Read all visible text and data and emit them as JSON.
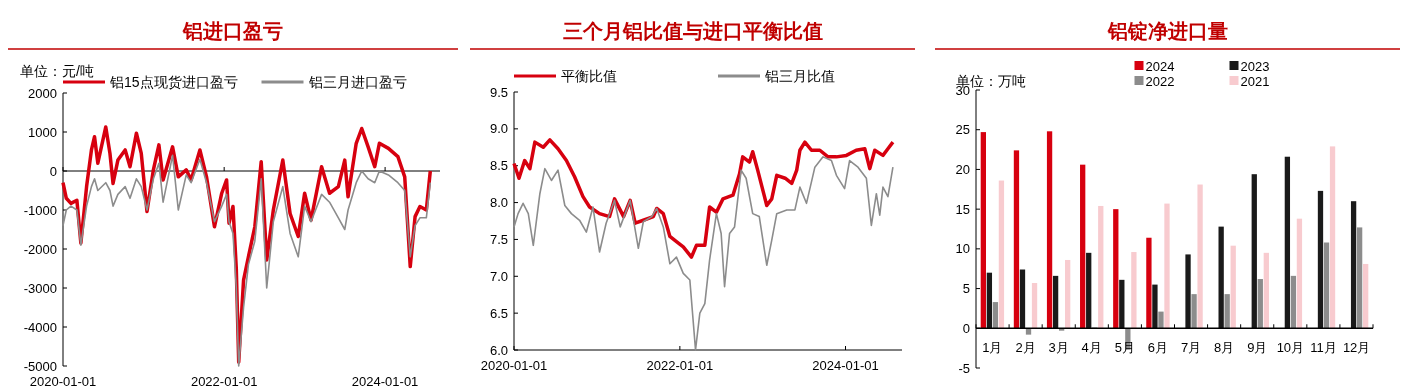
{
  "chart_data": [
    {
      "type": "line",
      "title": "铝进口盈亏",
      "annotations": [
        "单位：元/吨"
      ],
      "legend": "top",
      "line_style": "solid",
      "marker": "none",
      "xlim": [
        "2020-01-01",
        "2024-09-06"
      ],
      "xticks": [
        "2020-01-01",
        "2022-01-01",
        "2024-01-01"
      ],
      "ylim": [
        -5000,
        2000
      ],
      "yticks": [
        -5000,
        -4000,
        -3000,
        -2000,
        -1000,
        0,
        1000,
        2000
      ],
      "series": [
        {
          "name": "铝15点现货进口盈亏",
          "color": "#d7000f",
          "x": [
            "2020-01-01",
            "2020-01-16",
            "2020-02-06",
            "2020-03-04",
            "2020-03-22",
            "2020-04-17",
            "2020-05-09",
            "2020-05-23",
            "2020-06-07",
            "2020-07-13",
            "2020-08-01",
            "2020-08-15",
            "2020-09-06",
            "2020-10-09",
            "2020-10-31",
            "2020-11-29",
            "2020-12-21",
            "2021-01-16",
            "2021-02-14",
            "2021-03-11",
            "2021-03-30",
            "2021-05-12",
            "2021-06-07",
            "2021-07-13",
            "2021-08-04",
            "2021-09-13",
            "2021-10-13",
            "2021-11-18",
            "2021-12-21",
            "2022-01-12",
            "2022-01-23",
            "2022-02-10",
            "2022-02-25",
            "2022-03-08",
            "2022-03-30",
            "2022-04-21",
            "2022-05-20",
            "2022-06-18",
            "2022-07-13",
            "2022-08-12",
            "2022-09-24",
            "2022-10-27",
            "2022-12-03",
            "2023-01-01",
            "2023-01-30",
            "2023-03-19",
            "2023-04-24",
            "2023-06-03",
            "2023-07-02",
            "2023-07-17",
            "2023-08-23",
            "2023-09-17",
            "2023-10-16",
            "2023-11-15",
            "2023-12-06",
            "2024-01-16",
            "2024-02-28",
            "2024-03-30",
            "2024-04-24",
            "2024-05-16",
            "2024-06-07",
            "2024-07-06",
            "2024-07-24"
          ],
          "values": [
            -300,
            -700,
            -830,
            -750,
            -1850,
            -400,
            540,
            880,
            200,
            1130,
            450,
            -320,
            280,
            540,
            110,
            970,
            450,
            -1040,
            30,
            670,
            -230,
            620,
            -150,
            30,
            -230,
            540,
            -150,
            -1430,
            -570,
            -230,
            -1340,
            -910,
            -2500,
            -4900,
            -2800,
            -2200,
            -1430,
            240,
            -2280,
            -1000,
            280,
            -1090,
            -1680,
            -570,
            -1260,
            110,
            -570,
            -400,
            280,
            -660,
            710,
            1090,
            620,
            110,
            710,
            580,
            370,
            -150,
            -2450,
            -1170,
            -910,
            -1000,
            0
          ]
        },
        {
          "name": "铝三月进口盈亏",
          "color": "#8c8c8c",
          "x": [
            "2020-01-01",
            "2020-01-16",
            "2020-02-06",
            "2020-03-04",
            "2020-03-22",
            "2020-04-17",
            "2020-05-09",
            "2020-05-23",
            "2020-06-07",
            "2020-07-13",
            "2020-08-01",
            "2020-08-15",
            "2020-09-06",
            "2020-10-09",
            "2020-10-31",
            "2020-11-29",
            "2020-12-21",
            "2021-01-16",
            "2021-02-14",
            "2021-03-11",
            "2021-03-30",
            "2021-05-12",
            "2021-06-07",
            "2021-07-13",
            "2021-08-04",
            "2021-09-13",
            "2021-10-13",
            "2021-11-18",
            "2021-12-21",
            "2022-01-12",
            "2022-01-23",
            "2022-02-10",
            "2022-02-25",
            "2022-03-08",
            "2022-03-30",
            "2022-04-21",
            "2022-05-20",
            "2022-06-18",
            "2022-07-13",
            "2022-08-12",
            "2022-09-24",
            "2022-10-27",
            "2022-12-03",
            "2023-01-01",
            "2023-01-30",
            "2023-03-19",
            "2023-04-24",
            "2023-06-03",
            "2023-07-02",
            "2023-07-17",
            "2023-08-23",
            "2023-09-17",
            "2023-10-16",
            "2023-11-15",
            "2023-12-06",
            "2024-01-16",
            "2024-02-28",
            "2024-03-30",
            "2024-04-24",
            "2024-05-16",
            "2024-06-07",
            "2024-07-06",
            "2024-07-24"
          ],
          "values": [
            -1400,
            -1000,
            -900,
            -1000,
            -1900,
            -900,
            -400,
            -200,
            -500,
            -300,
            -500,
            -900,
            -600,
            -400,
            -700,
            -200,
            -400,
            -1000,
            -200,
            200,
            -800,
            400,
            -1000,
            -100,
            -300,
            300,
            -300,
            -1300,
            -900,
            -600,
            -1300,
            -1600,
            -3000,
            -5000,
            -3500,
            -2400,
            -1800,
            -200,
            -3000,
            -1300,
            -400,
            -1600,
            -2200,
            -900,
            -1300,
            -600,
            -800,
            -1200,
            -1500,
            -1000,
            -300,
            0,
            -200,
            -300,
            0,
            -100,
            -300,
            -500,
            -2200,
            -1400,
            -1200,
            -1200,
            -300
          ]
        }
      ]
    },
    {
      "type": "line",
      "title": "三个月铝比值与进口平衡比值",
      "legend": "top",
      "line_style": "solid",
      "marker": "none",
      "xlim": [
        "2020-01-01",
        "2024-09-06"
      ],
      "xticks": [
        "2020-01-01",
        "2022-01-01",
        "2024-01-01"
      ],
      "ylim": [
        6,
        9.5
      ],
      "yticks": [
        {
          "value": 6,
          "label": "6.0"
        },
        {
          "value": 6.5,
          "label": "6.5"
        },
        {
          "value": 7,
          "label": "7.0"
        },
        {
          "value": 7.5,
          "label": "7.5"
        },
        {
          "value": 8,
          "label": "8.0"
        },
        {
          "value": 8.5,
          "label": "8.5"
        },
        {
          "value": 9,
          "label": "9.0"
        },
        {
          "value": 9.5,
          "label": "9.5"
        }
      ],
      "series": [
        {
          "name": "平衡比值",
          "color": "#d7000f",
          "x": [
            "2020-01-01",
            "2020-01-23",
            "2020-02-17",
            "2020-03-11",
            "2020-04-02",
            "2020-05-09",
            "2020-06-07",
            "2020-07-13",
            "2020-08-19",
            "2020-09-24",
            "2020-10-31",
            "2020-11-29",
            "2021-01-12",
            "2021-02-25",
            "2021-03-19",
            "2021-04-28",
            "2021-05-27",
            "2021-06-18",
            "2021-07-24",
            "2021-09-06",
            "2021-09-21",
            "2021-10-20",
            "2021-11-18",
            "2021-12-17",
            "2022-01-16",
            "2022-02-21",
            "2022-03-15",
            "2022-04-21",
            "2022-05-12",
            "2022-06-11",
            "2022-07-10",
            "2022-08-23",
            "2022-09-21",
            "2022-10-05",
            "2022-11-04",
            "2022-11-18",
            "2022-12-10",
            "2023-01-19",
            "2023-02-10",
            "2023-03-04",
            "2023-04-10",
            "2023-05-09",
            "2023-05-31",
            "2023-06-14",
            "2023-07-06",
            "2023-08-04",
            "2023-09-10",
            "2023-10-16",
            "2023-11-22",
            "2024-01-05",
            "2024-02-17",
            "2024-03-26",
            "2024-04-17",
            "2024-05-09",
            "2024-06-14",
            "2024-07-06",
            "2024-07-28"
          ],
          "values": [
            8.53,
            8.33,
            8.57,
            8.46,
            8.82,
            8.75,
            8.85,
            8.73,
            8.57,
            8.35,
            8.08,
            7.94,
            7.85,
            7.81,
            8.05,
            7.81,
            8.03,
            7.72,
            7.76,
            7.81,
            7.92,
            7.85,
            7.54,
            7.47,
            7.4,
            7.26,
            7.42,
            7.42,
            7.94,
            7.87,
            8.05,
            8.1,
            8.39,
            8.62,
            8.55,
            8.69,
            8.44,
            7.96,
            8.05,
            8.37,
            8.33,
            8.26,
            8.44,
            8.71,
            8.82,
            8.71,
            8.71,
            8.62,
            8.62,
            8.64,
            8.71,
            8.73,
            8.46,
            8.71,
            8.64,
            8.73,
            8.82
          ]
        },
        {
          "name": "铝三月比值",
          "color": "#8c8c8c",
          "x": [
            "2020-01-01",
            "2020-01-19",
            "2020-02-10",
            "2020-03-04",
            "2020-03-26",
            "2020-04-24",
            "2020-05-16",
            "2020-06-14",
            "2020-07-13",
            "2020-08-12",
            "2020-09-10",
            "2020-10-16",
            "2020-11-15",
            "2020-12-14",
            "2021-01-12",
            "2021-02-10",
            "2021-03-19",
            "2021-04-13",
            "2021-05-27",
            "2021-07-02",
            "2021-07-24",
            "2021-08-30",
            "2021-09-21",
            "2021-10-20",
            "2021-11-18",
            "2021-12-17",
            "2022-01-16",
            "2022-02-14",
            "2022-03-11",
            "2022-03-30",
            "2022-04-21",
            "2022-05-12",
            "2022-06-11",
            "2022-07-02",
            "2022-07-17",
            "2022-08-08",
            "2022-08-30",
            "2022-09-28",
            "2022-10-20",
            "2022-11-18",
            "2022-12-17",
            "2023-01-19",
            "2023-02-10",
            "2023-03-04",
            "2023-04-17",
            "2023-05-23",
            "2023-06-14",
            "2023-07-13",
            "2023-08-19",
            "2023-09-24",
            "2023-10-31",
            "2023-11-22",
            "2023-12-28",
            "2024-01-19",
            "2024-02-25",
            "2024-04-02",
            "2024-04-24",
            "2024-05-16",
            "2024-05-31",
            "2024-06-14",
            "2024-07-06",
            "2024-07-28"
          ],
          "values": [
            7.67,
            7.85,
            7.99,
            7.85,
            7.42,
            8.12,
            8.46,
            8.3,
            8.44,
            7.96,
            7.85,
            7.76,
            7.6,
            7.94,
            7.33,
            7.72,
            8.03,
            7.67,
            8.03,
            7.38,
            7.74,
            7.81,
            7.92,
            7.67,
            7.17,
            7.26,
            7.04,
            6.95,
            6.0,
            6.5,
            6.63,
            7.22,
            7.85,
            7.58,
            6.86,
            7.58,
            7.67,
            8.44,
            8.33,
            7.85,
            7.81,
            7.15,
            7.49,
            7.85,
            7.9,
            7.9,
            8.21,
            7.99,
            8.48,
            8.62,
            8.57,
            8.37,
            8.19,
            8.57,
            8.48,
            8.33,
            7.69,
            8.12,
            7.83,
            8.21,
            8.08,
            8.48
          ]
        }
      ]
    },
    {
      "type": "bar",
      "title": "铝锭净进口量",
      "annotations": [
        "单位：万吨"
      ],
      "legend": "top",
      "categories": [
        "1月",
        "2月",
        "3月",
        "4月",
        "5月",
        "6月",
        "7月",
        "8月",
        "9月",
        "10月",
        "11月",
        "12月"
      ],
      "ylim": [
        -5,
        30
      ],
      "yticks": [
        -5,
        0,
        5,
        10,
        15,
        20,
        25,
        30
      ],
      "series": [
        {
          "name": "2024",
          "color": "#d7000f",
          "values": [
            24.7,
            22.4,
            24.8,
            20.6,
            15.0,
            11.4,
            null,
            null,
            null,
            null,
            null,
            null
          ]
        },
        {
          "name": "2023",
          "color": "#1a1a1a",
          "values": [
            7.0,
            7.4,
            6.6,
            9.5,
            6.1,
            5.5,
            9.3,
            12.8,
            19.4,
            21.6,
            17.3,
            16.0
          ]
        },
        {
          "name": "2022",
          "color": "#8c8c8c",
          "values": [
            3.3,
            -0.8,
            -0.3,
            0.1,
            -2.7,
            2.1,
            4.3,
            4.3,
            6.2,
            6.6,
            10.8,
            12.7
          ]
        },
        {
          "name": "2021",
          "color": "#f8cbcf",
          "values": [
            18.6,
            5.7,
            8.6,
            15.4,
            9.6,
            15.7,
            18.1,
            10.4,
            9.5,
            13.8,
            22.9,
            8.1
          ]
        }
      ]
    }
  ]
}
